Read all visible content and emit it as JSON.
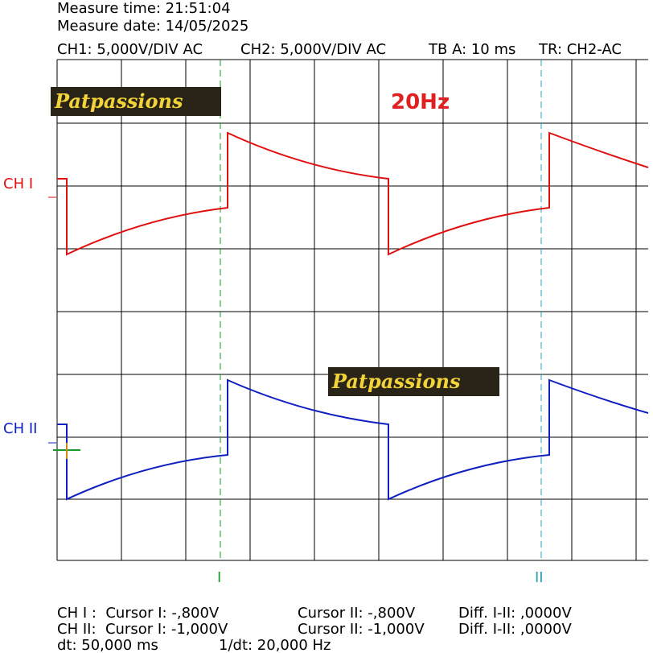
{
  "header": {
    "measure_time": "Measure time: 21:51:04",
    "measure_date": "Measure date: 14/05/2025",
    "settings": [
      "CH1: 5,000V/DIV AC",
      "CH2: 5,000V/DIV AC",
      "TB A: 10 ms",
      "TR: CH2-AC"
    ]
  },
  "channel_labels": [
    "CH I",
    "CH II"
  ],
  "watermarks": [
    "Patpassions",
    "Patpassions"
  ],
  "frequency_label": "20Hz",
  "cursor_labels": [
    "I",
    "II"
  ],
  "readout": {
    "rows": [
      [
        "CH I :  Cursor I: -,800V",
        "Cursor II: -,800V",
        "Diff. I-II: ,0000V"
      ],
      [
        "CH II:  Cursor I: -1,000V",
        "Cursor II: -1,000V",
        "Diff. I-II: ,0000V"
      ],
      [
        "dt: 50,000 ms",
        "1/dt: 20,000 Hz"
      ]
    ]
  }
}
